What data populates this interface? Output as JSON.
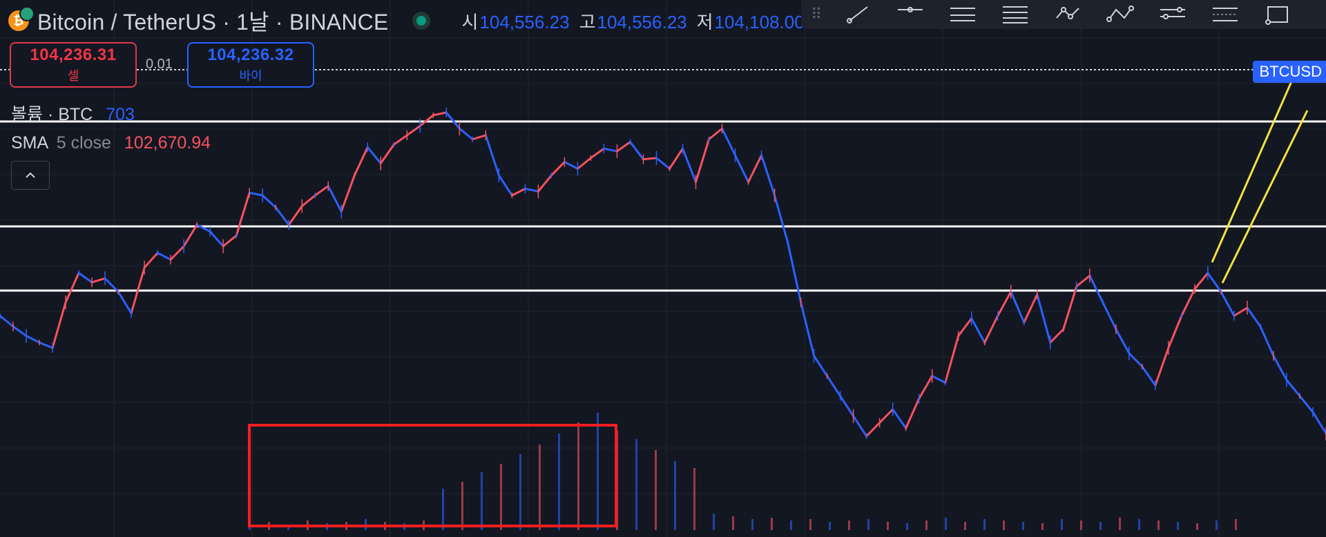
{
  "header": {
    "title": "Bitcoin / TetherUS · 1날 · BINANCE",
    "coin_glyph": "₿",
    "ohlc": [
      {
        "key": "시",
        "value": "104,556.23"
      },
      {
        "key": "고",
        "value": "104,556.23"
      },
      {
        "key": "저",
        "value": "104,108.00"
      }
    ]
  },
  "trade": {
    "sell_price": "104,236.31",
    "sell_label": "셀",
    "spread": "0.01",
    "buy_price": "104,236.32",
    "buy_label": "바이"
  },
  "legend": {
    "volume_label": "볼륨 · BTC",
    "volume_value": "703",
    "sma_label": "SMA",
    "sma_params": "5 close",
    "sma_value": "102,670.94",
    "collapse_glyph": "^"
  },
  "toolbar_tools": [
    "trend-line-tool",
    "horizontal-line-tool",
    "horizontal-ray-tool",
    "parallel-channel-tool",
    "path-tool",
    "polyline-tool",
    "info-line-tool",
    "date-range-tool",
    "rectangle-tool"
  ],
  "price_tag": "BTCUSD",
  "colors": {
    "background": "#131722",
    "up": "#f7525f",
    "down": "#2962ff",
    "sell": "#f23645",
    "buy": "#2962ff",
    "highlight_box": "#ff1e1e",
    "trend_channel": "#f5e042",
    "levels": "#ffffff"
  },
  "chart_data": {
    "type": "line",
    "series": [
      {
        "values": [
          320,
          312,
          305,
          300,
          296,
          330,
          352,
          345,
          348,
          338,
          322,
          356,
          367,
          362,
          372,
          388,
          383,
          372,
          380,
          412,
          410,
          401,
          388,
          402,
          410,
          417,
          398,
          425,
          446,
          434,
          448,
          455,
          462,
          470,
          472,
          460,
          452,
          455,
          425,
          410,
          415,
          413,
          425,
          435,
          430,
          438,
          445,
          443,
          450,
          437,
          438,
          430,
          445,
          420,
          452,
          460,
          440,
          420,
          440,
          410,
          375,
          330,
          290,
          275,
          260,
          245,
          230,
          240,
          250,
          236,
          258,
          275,
          270,
          305,
          318,
          300,
          320,
          338,
          315,
          336,
          300,
          310,
          342,
          350,
          330,
          310,
          292,
          282,
          268,
          296,
          320,
          340,
          352,
          338,
          320,
          326,
          312,
          290,
          272,
          260,
          248,
          232
        ]
      }
    ],
    "volume": [
      5,
      6,
      4,
      7,
      5,
      6,
      8,
      6,
      5,
      7,
      30,
      35,
      42,
      48,
      55,
      62,
      70,
      78,
      85,
      72,
      66,
      58,
      50,
      45,
      12,
      10,
      8,
      9,
      7,
      8,
      6,
      7,
      8,
      6,
      5,
      7,
      9,
      6,
      8,
      7,
      6,
      5,
      8,
      7,
      6,
      9,
      8,
      7,
      6,
      5,
      7,
      8
    ]
  }
}
